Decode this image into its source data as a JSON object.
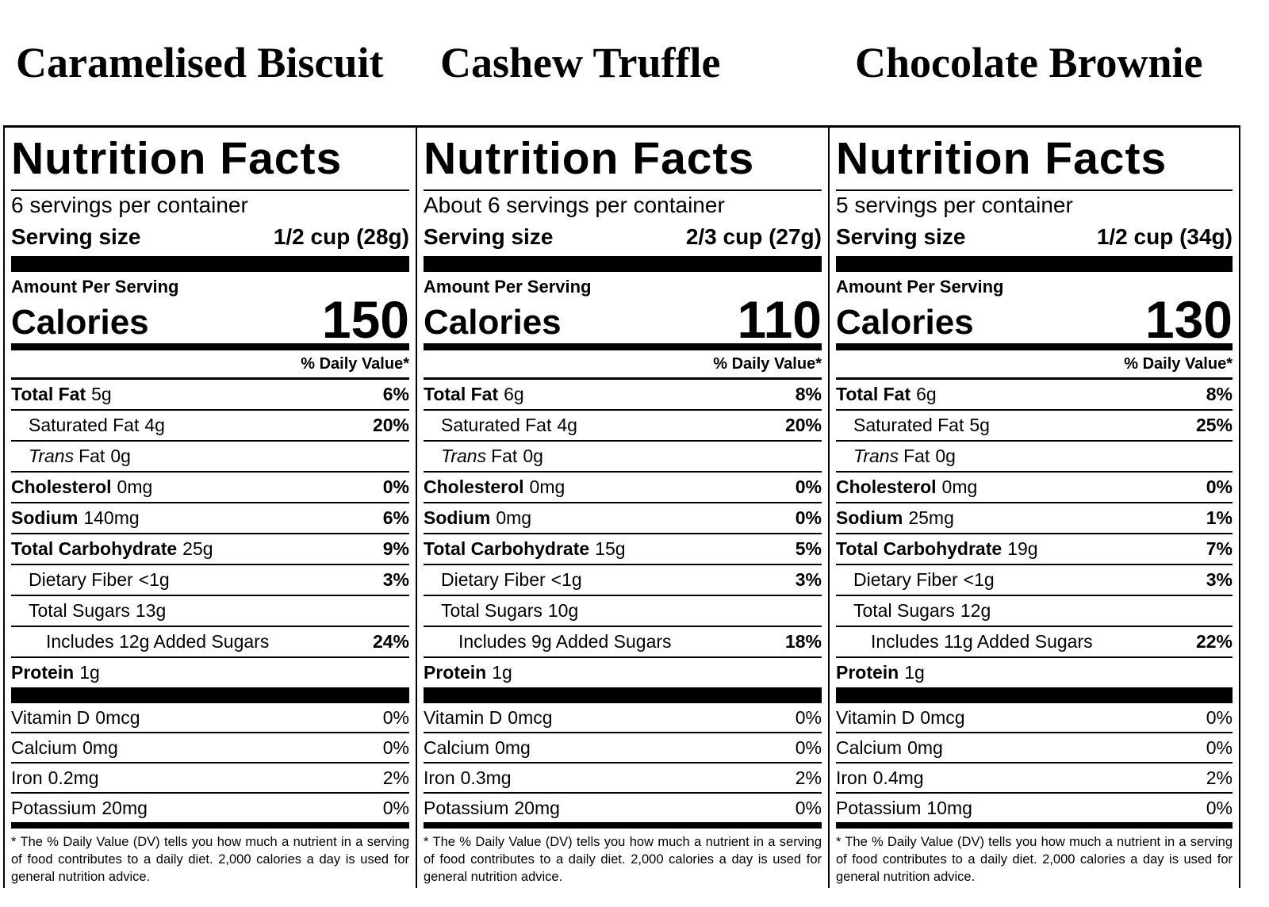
{
  "labels": [
    {
      "product": "Caramelised Biscuit",
      "heading": "Nutrition Facts",
      "servings": "6 servings per container",
      "serving_size_label": "Serving size",
      "serving_size": "1/2 cup (28g)",
      "amount_per_serving": "Amount Per Serving",
      "calories_label": "Calories",
      "calories": 150,
      "dv_header": "% Daily Value*",
      "nutrients": [
        {
          "name": "Total Fat",
          "amount": "5g",
          "dv": "6%",
          "indent": 0
        },
        {
          "name": "Saturated Fat",
          "amount": "4g",
          "dv": "20%",
          "indent": 1
        },
        {
          "italic": "Trans",
          "name": "Fat",
          "amount": "0g",
          "indent": 1
        },
        {
          "name": "Cholesterol",
          "amount": "0mg",
          "dv": "0%",
          "indent": 0
        },
        {
          "name": "Sodium",
          "amount": "140mg",
          "dv": "6%",
          "indent": 0
        },
        {
          "name": "Total Carbohydrate",
          "amount": "25g",
          "dv": "9%",
          "indent": 0
        },
        {
          "name": "Dietary Fiber",
          "amount": "<1g",
          "dv": "3%",
          "indent": 1
        },
        {
          "name": "Total Sugars",
          "amount": "13g",
          "indent": 1
        },
        {
          "name": "Includes 12g Added Sugars",
          "dv": "24%",
          "indent": 2
        },
        {
          "name": "Protein",
          "amount": "1g",
          "indent": 0
        }
      ],
      "vitamins": [
        {
          "name": "Vitamin D",
          "amount": "0mcg",
          "dv": "0%"
        },
        {
          "name": "Calcium",
          "amount": "0mg",
          "dv": "0%"
        },
        {
          "name": "Iron",
          "amount": "0.2mg",
          "dv": "2%"
        },
        {
          "name": "Potassium",
          "amount": "20mg",
          "dv": "0%"
        }
      ],
      "footnote": "* The % Daily Value (DV) tells you how much a nutrient in a serving of food contributes to a daily diet. 2,000 calories a day is used for general nutrition advice."
    },
    {
      "product": "Cashew Truffle",
      "heading": "Nutrition Facts",
      "servings": "About 6 servings per container",
      "serving_size_label": "Serving size",
      "serving_size": "2/3 cup (27g)",
      "amount_per_serving": "Amount Per Serving",
      "calories_label": "Calories",
      "calories": 110,
      "dv_header": "% Daily Value*",
      "nutrients": [
        {
          "name": "Total Fat",
          "amount": "6g",
          "dv": "8%",
          "indent": 0
        },
        {
          "name": "Saturated Fat",
          "amount": "4g",
          "dv": "20%",
          "indent": 1
        },
        {
          "italic": "Trans",
          "name": "Fat",
          "amount": "0g",
          "indent": 1
        },
        {
          "name": "Cholesterol",
          "amount": "0mg",
          "dv": "0%",
          "indent": 0
        },
        {
          "name": "Sodium",
          "amount": "0mg",
          "dv": "0%",
          "indent": 0
        },
        {
          "name": "Total Carbohydrate",
          "amount": "15g",
          "dv": "5%",
          "indent": 0
        },
        {
          "name": "Dietary Fiber",
          "amount": "<1g",
          "dv": "3%",
          "indent": 1
        },
        {
          "name": "Total Sugars",
          "amount": "10g",
          "indent": 1
        },
        {
          "name": "Includes 9g Added Sugars",
          "dv": "18%",
          "indent": 2
        },
        {
          "name": "Protein",
          "amount": "1g",
          "indent": 0
        }
      ],
      "vitamins": [
        {
          "name": "Vitamin D",
          "amount": "0mcg",
          "dv": "0%"
        },
        {
          "name": "Calcium",
          "amount": "0mg",
          "dv": "0%"
        },
        {
          "name": "Iron",
          "amount": "0.3mg",
          "dv": "2%"
        },
        {
          "name": "Potassium",
          "amount": "20mg",
          "dv": "0%"
        }
      ],
      "footnote": "* The % Daily Value (DV) tells you how much a nutrient in a serving of food contributes to a daily diet. 2,000 calories a day is used for general nutrition advice."
    },
    {
      "product": "Chocolate Brownie",
      "heading": "Nutrition Facts",
      "servings": "5 servings per container",
      "serving_size_label": "Serving size",
      "serving_size": "1/2 cup (34g)",
      "amount_per_serving": "Amount Per Serving",
      "calories_label": "Calories",
      "calories": 130,
      "dv_header": "% Daily Value*",
      "nutrients": [
        {
          "name": "Total Fat",
          "amount": "6g",
          "dv": "8%",
          "indent": 0
        },
        {
          "name": "Saturated Fat",
          "amount": "5g",
          "dv": "25%",
          "indent": 1
        },
        {
          "italic": "Trans",
          "name": "Fat",
          "amount": "0g",
          "indent": 1
        },
        {
          "name": "Cholesterol",
          "amount": "0mg",
          "dv": "0%",
          "indent": 0
        },
        {
          "name": "Sodium",
          "amount": "25mg",
          "dv": "1%",
          "indent": 0
        },
        {
          "name": "Total Carbohydrate",
          "amount": "19g",
          "dv": "7%",
          "indent": 0
        },
        {
          "name": "Dietary Fiber",
          "amount": "<1g",
          "dv": "3%",
          "indent": 1
        },
        {
          "name": "Total Sugars",
          "amount": "12g",
          "indent": 1
        },
        {
          "name": "Includes 11g Added Sugars",
          "dv": "22%",
          "indent": 2
        },
        {
          "name": "Protein",
          "amount": "1g",
          "indent": 0
        }
      ],
      "vitamins": [
        {
          "name": "Vitamin D",
          "amount": "0mcg",
          "dv": "0%"
        },
        {
          "name": "Calcium",
          "amount": "0mg",
          "dv": "0%"
        },
        {
          "name": "Iron",
          "amount": "0.4mg",
          "dv": "2%"
        },
        {
          "name": "Potassium",
          "amount": "10mg",
          "dv": "0%"
        }
      ],
      "footnote": "* The % Daily Value (DV) tells you how much a nutrient in a serving of food contributes to a daily diet. 2,000 calories a day is used for general nutrition advice."
    }
  ]
}
